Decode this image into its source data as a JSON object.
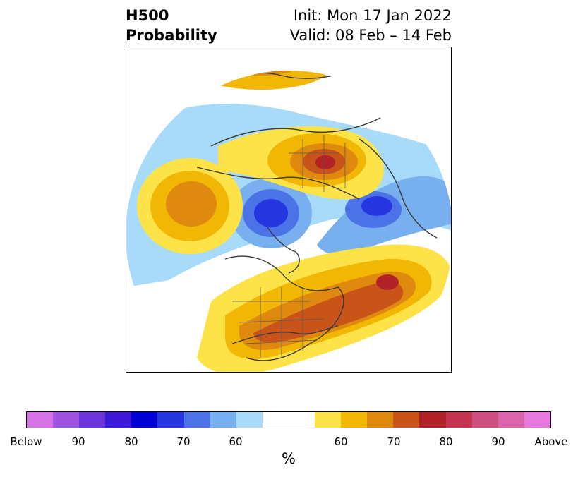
{
  "header": {
    "variable": "H500",
    "product": "Probability",
    "init": "Init: Mon 17 Jan 2022",
    "valid": "Valid: 08 Feb – 14 Feb"
  },
  "colorbar": {
    "unit": "%",
    "below_label": "Below",
    "above_label": "Above",
    "below_ticks": [
      "90",
      "80",
      "70",
      "60"
    ],
    "above_ticks": [
      "60",
      "70",
      "80",
      "90"
    ],
    "colors": [
      "#d674e6",
      "#9f52df",
      "#6a35d9",
      "#3d18d8",
      "#0000d4",
      "#2536e0",
      "#4c72e8",
      "#78afee",
      "#a8dbfa",
      "#ffffff",
      "#ffffff",
      "#fde347",
      "#f2b705",
      "#df8a0f",
      "#c8541a",
      "#b12328",
      "#c43450",
      "#cf5080",
      "#db64ad",
      "#e779dc"
    ]
  },
  "map": {
    "projection": "north-polar-stereographic",
    "features": [
      "coastlines",
      "country-borders",
      "us-state-borders"
    ],
    "anomalies": [
      {
        "region": "north-atlantic",
        "sign": "above",
        "max_class": "80"
      },
      {
        "region": "eastern-north-america",
        "sign": "above",
        "max_class": "70"
      },
      {
        "region": "eastern-europe-western-russia",
        "sign": "above",
        "max_class": "80"
      },
      {
        "region": "north-pacific",
        "sign": "above",
        "max_class": "70"
      },
      {
        "region": "arctic-siberia",
        "sign": "below",
        "max_class": "80"
      },
      {
        "region": "greenland-arctic",
        "sign": "below",
        "max_class": "80"
      }
    ]
  }
}
